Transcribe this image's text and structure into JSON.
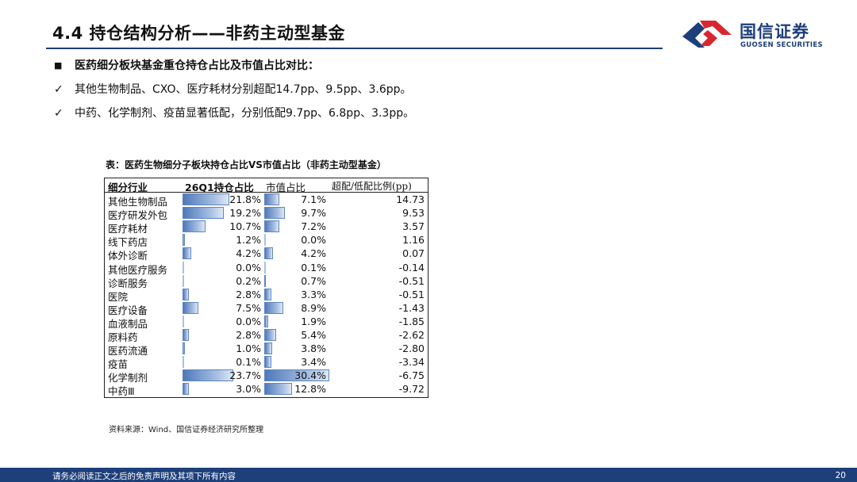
{
  "header": {
    "title": "4.4  持仓结构分析——非药主动型基金",
    "brand_cn": "国信证券",
    "brand_en": "GUOSEN SECURITIES",
    "brand_colors": {
      "navy": "#1d3f7a",
      "red": "#d7282f"
    }
  },
  "bullets": [
    {
      "mark": "■",
      "text": "医药细分板块基金重仓持仓占比及市值占比对比："
    },
    {
      "mark": "✓",
      "text": "其他生物制品、CXO、医疗耗材分别超配14.7pp、9.5pp、3.6pp。"
    },
    {
      "mark": "✓",
      "text": "中药、化学制剂、疫苗显著低配，分别低配9.7pp、6.8pp、3.3pp。"
    }
  ],
  "table": {
    "caption": "表：医药生物细分子板块持仓占比VS市值占比（非药主动型基金）",
    "headers": {
      "segment": "细分行业",
      "holding": "26Q1持仓占比",
      "market": "市值占比",
      "ratio": "超配/低配比例(pp)"
    },
    "rows": [
      {
        "name": "其他生物制品",
        "holding": "21.8%",
        "market": "7.1%",
        "ratio": "14.73"
      },
      {
        "name": "医疗研发外包",
        "holding": "19.2%",
        "market": "9.7%",
        "ratio": "9.53"
      },
      {
        "name": "医疗耗材",
        "holding": "10.7%",
        "market": "7.2%",
        "ratio": "3.57"
      },
      {
        "name": "线下药店",
        "holding": "1.2%",
        "market": "0.0%",
        "ratio": "1.16"
      },
      {
        "name": "体外诊断",
        "holding": "4.2%",
        "market": "4.2%",
        "ratio": "0.07"
      },
      {
        "name": "其他医疗服务",
        "holding": "0.0%",
        "market": "0.1%",
        "ratio": "-0.14"
      },
      {
        "name": "诊断服务",
        "holding": "0.2%",
        "market": "0.7%",
        "ratio": "-0.51"
      },
      {
        "name": "医院",
        "holding": "2.8%",
        "market": "3.3%",
        "ratio": "-0.51"
      },
      {
        "name": "医疗设备",
        "holding": "7.5%",
        "market": "8.9%",
        "ratio": "-1.43"
      },
      {
        "name": "血液制品",
        "holding": "0.0%",
        "market": "1.9%",
        "ratio": "-1.85"
      },
      {
        "name": "原料药",
        "holding": "2.8%",
        "market": "5.4%",
        "ratio": "-2.62"
      },
      {
        "name": "医药流通",
        "holding": "1.0%",
        "market": "3.8%",
        "ratio": "-2.80"
      },
      {
        "name": "疫苗",
        "holding": "0.1%",
        "market": "3.4%",
        "ratio": "-3.34"
      },
      {
        "name": "化学制剂",
        "holding": "23.7%",
        "market": "30.4%",
        "ratio": "-6.75"
      },
      {
        "name": "中药Ⅲ",
        "holding": "3.0%",
        "market": "12.8%",
        "ratio": "-9.72"
      }
    ]
  },
  "source": "资料来源：Wind、国信证券经济研究所整理",
  "footer": {
    "disclaimer": "请务必阅读正文之后的免责声明及其项下所有内容",
    "page": "20"
  }
}
